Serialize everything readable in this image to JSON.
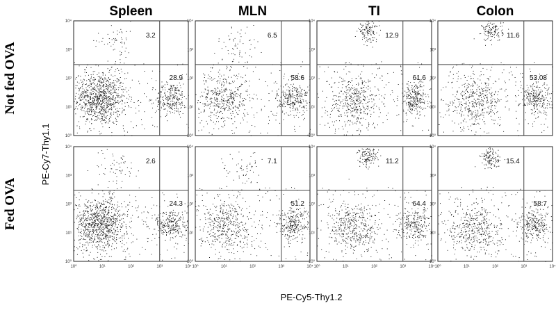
{
  "chart_data": {
    "type": "scatter",
    "title": "",
    "columns": [
      "Spleen",
      "MLN",
      "TI",
      "Colon"
    ],
    "rows": [
      "Not fed OVA",
      "Fed OVA"
    ],
    "xlabel": "PE-Cy5-Thy1.2",
    "ylabel": "PE-Cy7-Thy1.1",
    "x_scale": "log",
    "y_scale": "log",
    "xlim": [
      1,
      10000
    ],
    "ylim": [
      1,
      10000
    ],
    "x_ticks": [
      "10⁰",
      "10¹",
      "10²",
      "10³",
      "10⁴"
    ],
    "y_ticks": [
      "10⁰",
      "10¹",
      "10²",
      "10³",
      "10⁴"
    ],
    "gates": {
      "x": 1000,
      "y": 300
    },
    "quadrant_labels": {
      "upper_left": [
        [
          "3.2",
          "6.5",
          "12.9",
          "11.6"
        ],
        [
          "2.6",
          "7.1",
          "11.2",
          "15.4"
        ]
      ],
      "lower_right": [
        [
          "28.9",
          "58.6",
          "61.6",
          "53.08"
        ],
        [
          "24.3",
          "51.2",
          "64.4",
          "58.7"
        ]
      ]
    },
    "populations": [
      [
        {
          "upper": [
            30,
            2000
          ],
          "lower_left": [
            8,
            20
          ],
          "lower_right": [
            2500,
            20
          ]
        },
        {
          "upper": [
            30,
            1500
          ],
          "lower_left": [
            10,
            20
          ],
          "lower_right": [
            2500,
            20
          ]
        },
        {
          "upper": [
            60,
            4500
          ],
          "lower_left": [
            20,
            15
          ],
          "lower_right": [
            2500,
            20
          ]
        },
        {
          "upper": [
            80,
            4500
          ],
          "lower_left": [
            20,
            15
          ],
          "lower_right": [
            2500,
            20
          ]
        }
      ],
      [
        {
          "upper": [
            30,
            1800
          ],
          "lower_left": [
            8,
            20
          ],
          "lower_right": [
            2500,
            20
          ]
        },
        {
          "upper": [
            40,
            1500
          ],
          "lower_left": [
            10,
            20
          ],
          "lower_right": [
            2500,
            20
          ]
        },
        {
          "upper": [
            60,
            4500
          ],
          "lower_left": [
            20,
            15
          ],
          "lower_right": [
            2500,
            20
          ]
        },
        {
          "upper": [
            70,
            4000
          ],
          "lower_left": [
            20,
            15
          ],
          "lower_right": [
            2500,
            20
          ]
        }
      ]
    ],
    "dot_color": "#1a1a1a"
  }
}
